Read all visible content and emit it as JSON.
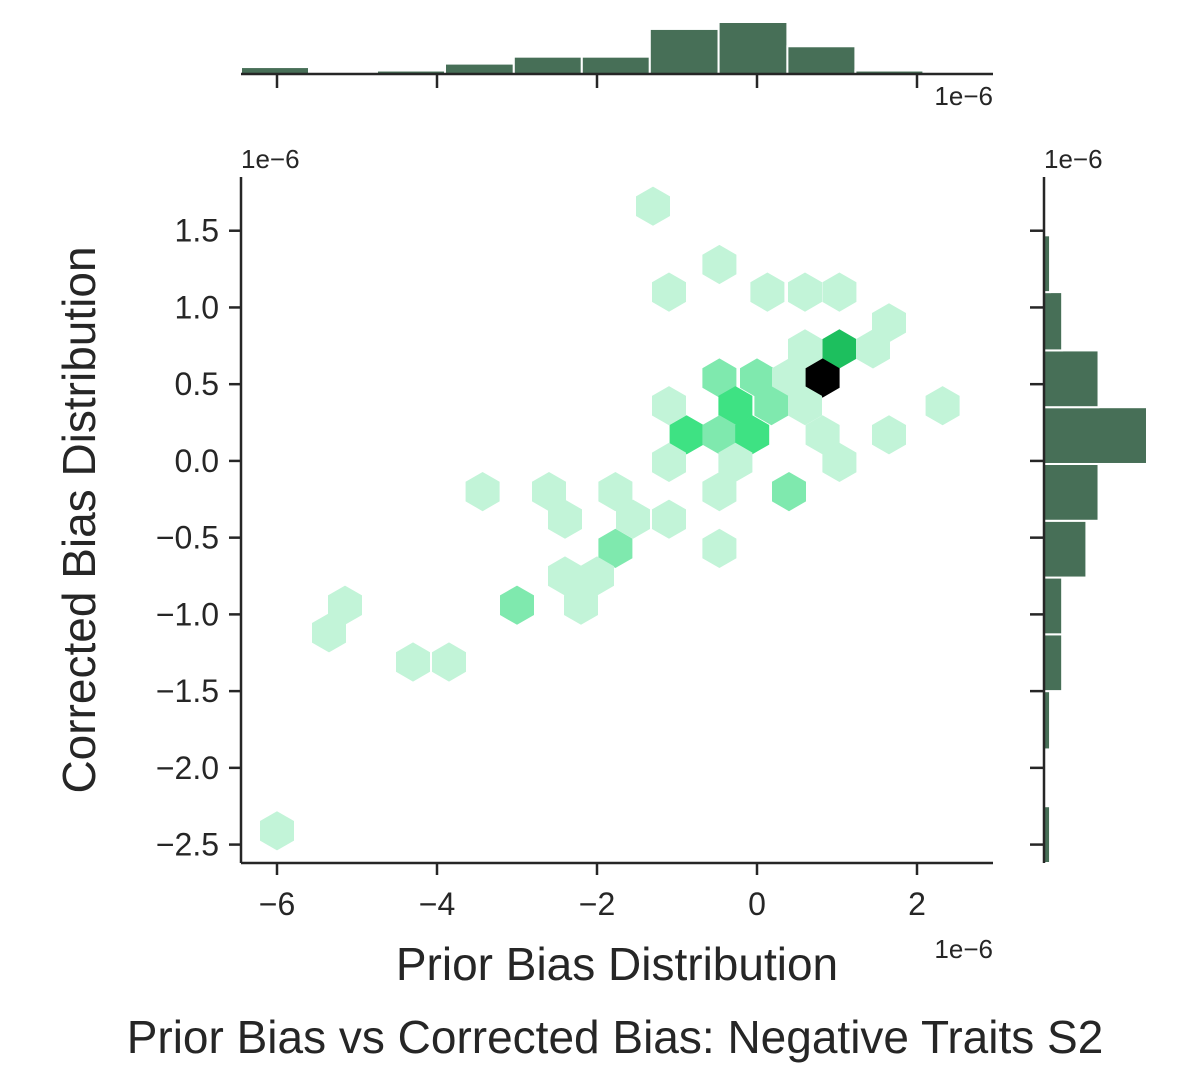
{
  "chart_data": {
    "type": "hexbin-joint",
    "title": "Prior Bias vs Corrected Bias: Negative Traits S2",
    "xlabel": "Prior Bias Distribution",
    "ylabel": "Corrected Bias Distribution",
    "x_scale_label": "1e−6",
    "y_scale_label": "1e−6",
    "top_marginal_scale_label": "1e−6",
    "right_marginal_scale_label": "1e−6",
    "xlim": [
      -6.45,
      2.95
    ],
    "ylim": [
      -2.62,
      1.85
    ],
    "x_ticks": [
      -6,
      -4,
      -2,
      0,
      2
    ],
    "x_tick_labels": [
      "−6",
      "−4",
      "−2",
      "0",
      "2"
    ],
    "y_ticks": [
      1.5,
      1.0,
      0.5,
      0.0,
      -0.5,
      -1.0,
      -1.5,
      -2.0,
      -2.5
    ],
    "y_tick_labels": [
      "1.5",
      "1.0",
      "0.5",
      "0.0",
      "−0.5",
      "−1.0",
      "−1.5",
      "−2.0",
      "−2.5"
    ],
    "colors": {
      "hex_low": "#c2f4d8",
      "hex_mid": "#7fe9ae",
      "hex_high": "#3ee283",
      "hex_peak": "#1dbf5e",
      "hex_max": "#000000",
      "marginal_bar": "#476f57",
      "axis": "#262626"
    },
    "hex_radius_x": 0.245,
    "hexbins": [
      {
        "x": -1.3,
        "y": 1.66,
        "count": 1
      },
      {
        "x": -0.47,
        "y": 1.28,
        "count": 1
      },
      {
        "x": -1.1,
        "y": 1.1,
        "count": 1
      },
      {
        "x": 0.13,
        "y": 1.1,
        "count": 1
      },
      {
        "x": 0.6,
        "y": 1.1,
        "count": 1
      },
      {
        "x": 1.03,
        "y": 1.1,
        "count": 1
      },
      {
        "x": 1.65,
        "y": 0.9,
        "count": 1
      },
      {
        "x": 0.6,
        "y": 0.73,
        "count": 1
      },
      {
        "x": 1.03,
        "y": 0.73,
        "count": 4
      },
      {
        "x": 1.45,
        "y": 0.73,
        "count": 1
      },
      {
        "x": -0.47,
        "y": 0.54,
        "count": 2
      },
      {
        "x": 0.0,
        "y": 0.54,
        "count": 2
      },
      {
        "x": 0.4,
        "y": 0.54,
        "count": 1
      },
      {
        "x": 0.82,
        "y": 0.54,
        "count": 6
      },
      {
        "x": -1.1,
        "y": 0.36,
        "count": 1
      },
      {
        "x": -0.27,
        "y": 0.36,
        "count": 3
      },
      {
        "x": 0.18,
        "y": 0.36,
        "count": 2
      },
      {
        "x": 0.6,
        "y": 0.36,
        "count": 1
      },
      {
        "x": 2.32,
        "y": 0.36,
        "count": 1
      },
      {
        "x": -0.88,
        "y": 0.17,
        "count": 3
      },
      {
        "x": -0.47,
        "y": 0.17,
        "count": 2
      },
      {
        "x": -0.06,
        "y": 0.17,
        "count": 3
      },
      {
        "x": 0.82,
        "y": 0.17,
        "count": 1
      },
      {
        "x": 1.65,
        "y": 0.17,
        "count": 1
      },
      {
        "x": -1.1,
        "y": -0.01,
        "count": 1
      },
      {
        "x": -0.27,
        "y": -0.01,
        "count": 1
      },
      {
        "x": 1.03,
        "y": -0.01,
        "count": 1
      },
      {
        "x": -3.43,
        "y": -0.2,
        "count": 1
      },
      {
        "x": -2.6,
        "y": -0.2,
        "count": 1
      },
      {
        "x": -1.77,
        "y": -0.2,
        "count": 1
      },
      {
        "x": -0.47,
        "y": -0.2,
        "count": 1
      },
      {
        "x": 0.4,
        "y": -0.2,
        "count": 2
      },
      {
        "x": -2.4,
        "y": -0.38,
        "count": 1
      },
      {
        "x": -1.55,
        "y": -0.38,
        "count": 1
      },
      {
        "x": -1.1,
        "y": -0.38,
        "count": 1
      },
      {
        "x": -1.77,
        "y": -0.57,
        "count": 2
      },
      {
        "x": -0.47,
        "y": -0.57,
        "count": 1
      },
      {
        "x": -2.4,
        "y": -0.75,
        "count": 1
      },
      {
        "x": -2.0,
        "y": -0.75,
        "count": 1
      },
      {
        "x": -3.0,
        "y": -0.94,
        "count": 2
      },
      {
        "x": -2.2,
        "y": -0.94,
        "count": 1
      },
      {
        "x": -5.15,
        "y": -0.94,
        "count": 1
      },
      {
        "x": -5.35,
        "y": -1.12,
        "count": 1
      },
      {
        "x": -4.3,
        "y": -1.31,
        "count": 1
      },
      {
        "x": -3.85,
        "y": -1.31,
        "count": 1
      },
      {
        "x": -6.0,
        "y": -2.41,
        "count": 1
      }
    ],
    "top_marginal": {
      "orientation": "vertical",
      "bin_edges": [
        -6.45,
        -5.6,
        -4.75,
        -3.9,
        -3.04,
        -2.19,
        -1.34,
        -0.48,
        0.38,
        1.23,
        2.08,
        2.94
      ],
      "counts": [
        2,
        0,
        1,
        3,
        5,
        5,
        13,
        15,
        8,
        1,
        0
      ]
    },
    "right_marginal": {
      "orientation": "horizontal",
      "bin_edges": [
        -2.62,
        -2.25,
        -1.88,
        -1.5,
        -1.13,
        -0.76,
        -0.39,
        -0.02,
        0.35,
        0.72,
        1.1,
        1.47,
        1.85
      ],
      "counts": [
        1,
        0,
        1,
        3,
        3,
        7,
        9,
        17,
        9,
        3,
        1,
        0
      ]
    }
  }
}
